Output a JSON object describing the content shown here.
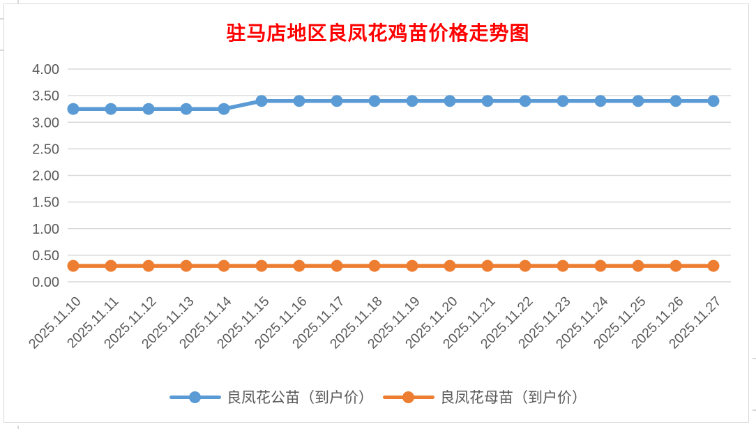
{
  "chart": {
    "background": "#FFFFFF",
    "border_color": "#D9D9D9",
    "title_color": "#FF0000"
  },
  "chart_data": {
    "type": "line",
    "title": "驻马店地区良凤花鸡苗价格走势图",
    "x": [
      "2025.11.10",
      "2025.11.11",
      "2025.11.12",
      "2025.11.13",
      "2025.11.14",
      "2025.11.15",
      "2025.11.16",
      "2025.11.17",
      "2025.11.18",
      "2025.11.19",
      "2025.11.20",
      "2025.11.21",
      "2025.11.22",
      "2025.11.23",
      "2025.11.24",
      "2025.11.25",
      "2025.11.26",
      "2025.11.27"
    ],
    "series": [
      {
        "name": "良凤花公苗（到户价）",
        "color": "#5B9BD5",
        "values": [
          3.25,
          3.25,
          3.25,
          3.25,
          3.25,
          3.4,
          3.4,
          3.4,
          3.4,
          3.4,
          3.4,
          3.4,
          3.4,
          3.4,
          3.4,
          3.4,
          3.4,
          3.4
        ]
      },
      {
        "name": "良凤花母苗（到户价）",
        "color": "#ED7D31",
        "values": [
          0.3,
          0.3,
          0.3,
          0.3,
          0.3,
          0.3,
          0.3,
          0.3,
          0.3,
          0.3,
          0.3,
          0.3,
          0.3,
          0.3,
          0.3,
          0.3,
          0.3,
          0.3
        ]
      }
    ],
    "ylim": [
      0,
      4
    ],
    "y_tick_step": 0.5,
    "y_tick_labels": [
      "0.00",
      "0.50",
      "1.00",
      "1.50",
      "2.00",
      "2.50",
      "3.00",
      "3.50",
      "4.00"
    ],
    "xlabel": "",
    "ylabel": "",
    "grid": true,
    "gridline_color": "#D9D9D9",
    "axis_text_color": "#595959",
    "legend_position": "bottom"
  }
}
